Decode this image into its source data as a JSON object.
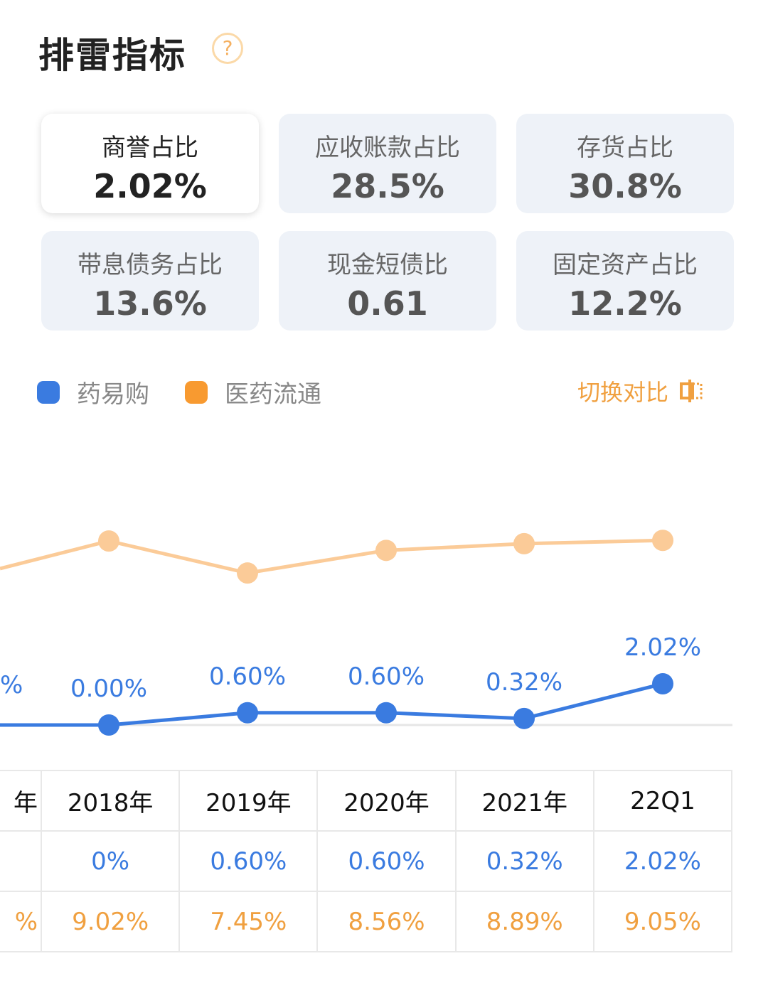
{
  "header": {
    "title": "排雷指标",
    "help_icon": "question-circle-icon"
  },
  "cards": [
    {
      "label": "商誉占比",
      "value": "2.02%",
      "active": true
    },
    {
      "label": "应收账款占比",
      "value": "28.5%"
    },
    {
      "label": "存货占比",
      "value": "30.8%"
    },
    {
      "label": "带息债务占比",
      "value": "13.6%"
    },
    {
      "label": "现金短债比",
      "value": "0.61"
    },
    {
      "label": "固定资产占比",
      "value": "12.2%"
    }
  ],
  "legend": [
    {
      "name": "药易购",
      "color": "#3a7be0"
    },
    {
      "name": "医药流通",
      "color": "#f89a30"
    }
  ],
  "switch": {
    "label": "切换对比",
    "icon": "switch-icon"
  },
  "chart_data": {
    "type": "line",
    "categories": [
      "2018年",
      "2019年",
      "2020年",
      "2021年",
      "22Q1"
    ],
    "series": [
      {
        "name": "药易购",
        "values": [
          0.0,
          0.6,
          0.6,
          0.32,
          2.02
        ],
        "labels": [
          "0.00%",
          "0.60%",
          "0.60%",
          "0.32%",
          "2.02%"
        ],
        "color": "#3a7be0"
      },
      {
        "name": "医药流通",
        "values": [
          9.02,
          7.45,
          8.56,
          8.89,
          9.05
        ],
        "color": "#fbcb98"
      }
    ],
    "clipped_left_label": "%"
  },
  "table": {
    "header": [
      "年",
      "2018年",
      "2019年",
      "2020年",
      "2021年",
      "22Q1"
    ],
    "rows": [
      [
        "",
        "0%",
        "0.60%",
        "0.60%",
        "0.32%",
        "2.02%"
      ],
      [
        "%",
        "9.02%",
        "7.45%",
        "8.56%",
        "8.89%",
        "9.05%"
      ]
    ]
  }
}
